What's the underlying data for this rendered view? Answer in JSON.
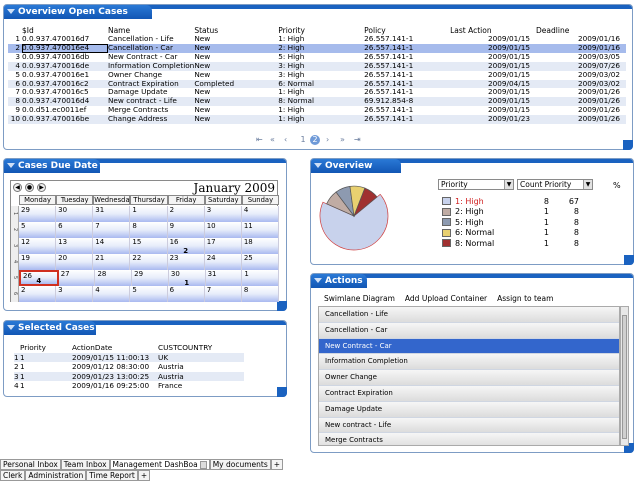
{
  "overview_cases": {
    "title": "Overview Open Cases",
    "columns": [
      "$Id",
      "Name",
      "Status",
      "Priority",
      "Policy",
      "Last Action",
      "Deadline"
    ],
    "rows": [
      {
        "n": "1",
        "id": "0.0.937.470016d7",
        "name": "Cancellation - Life",
        "status": "New",
        "priority": "1: High",
        "policy": "26.557.141-1",
        "last": "2009/01/15",
        "deadline": "2009/01/16"
      },
      {
        "n": "2",
        "id": "0.0.937.470016e4",
        "name": "Cancellation - Car",
        "status": "New",
        "priority": "2: High",
        "policy": "26.557.141-1",
        "last": "2009/01/15",
        "deadline": "2009/01/16"
      },
      {
        "n": "3",
        "id": "0.0.937.470016db",
        "name": "New Contract - Car",
        "status": "New",
        "priority": "5: High",
        "policy": "26.557.141-1",
        "last": "2009/01/15",
        "deadline": "2009/03/05"
      },
      {
        "n": "4",
        "id": "0.0.937.470016de",
        "name": "Information Completion",
        "status": "New",
        "priority": "3: High",
        "policy": "26.557.141-1",
        "last": "2009/01/15",
        "deadline": "2009/07/26"
      },
      {
        "n": "5",
        "id": "0.0.937.470016e1",
        "name": "Owner Change",
        "status": "New",
        "priority": "3: High",
        "policy": "26.557.141-1",
        "last": "2009/01/15",
        "deadline": "2009/03/02"
      },
      {
        "n": "6",
        "id": "0.0.937.470016c2",
        "name": "Contract Expiration",
        "status": "Completed",
        "priority": "6: Normal",
        "policy": "26.557.141-1",
        "last": "2009/04/15",
        "deadline": "2009/03/02"
      },
      {
        "n": "7",
        "id": "0.0.937.470016c5",
        "name": "Damage Update",
        "status": "New",
        "priority": "1: High",
        "policy": "26.557.141-1",
        "last": "2009/01/15",
        "deadline": "2009/01/26"
      },
      {
        "n": "8",
        "id": "0.0.937.470016d4",
        "name": "New contract - Life",
        "status": "New",
        "priority": "8: Normal",
        "policy": "69.912.854-8",
        "last": "2009/01/15",
        "deadline": "2009/01/26"
      },
      {
        "n": "9",
        "id": "0.0.d51.ec0011ef",
        "name": "Merge Contracts",
        "status": "New",
        "priority": "1: High",
        "policy": "26.557.141-1",
        "last": "2009/01/15",
        "deadline": "2009/01/26"
      },
      {
        "n": "10",
        "id": "0.0.937.470016be",
        "name": "Change Address",
        "status": "New",
        "priority": "1: High",
        "policy": "26.557.141-1",
        "last": "2009/01/23",
        "deadline": "2009/01/26"
      }
    ],
    "pager": {
      "first": "⇤",
      "prev_many": "«",
      "prev": "‹",
      "pages": [
        "1",
        "2"
      ],
      "current_page": "2",
      "next": "›",
      "next_many": "»",
      "last": "⇥"
    }
  },
  "cases_due": {
    "title": "Cases Due Date",
    "month": "January 2009",
    "days": [
      "Monday",
      "Tuesday",
      "Wednesday",
      "Thursday",
      "Friday",
      "Saturday",
      "Sunday"
    ],
    "weeks": [
      {
        "wk": "1",
        "d": [
          "29",
          "30",
          "31",
          "1",
          "2",
          "3",
          "4"
        ],
        "count": "",
        "count_col": -1
      },
      {
        "wk": "2",
        "d": [
          "5",
          "6",
          "7",
          "8",
          "9",
          "10",
          "11"
        ],
        "count": "",
        "count_col": -1
      },
      {
        "wk": "3",
        "d": [
          "12",
          "13",
          "14",
          "15",
          "16",
          "17",
          "18"
        ],
        "count": "2",
        "count_col": 4
      },
      {
        "wk": "4",
        "d": [
          "19",
          "20",
          "21",
          "22",
          "23",
          "24",
          "25"
        ],
        "count": "",
        "count_col": -1
      },
      {
        "wk": "5",
        "d": [
          "26",
          "27",
          "28",
          "29",
          "30",
          "31",
          "1"
        ],
        "count": "4",
        "count_col": 0
      },
      {
        "wk": "6",
        "d": [
          "2",
          "3",
          "4",
          "5",
          "6",
          "7",
          "8"
        ],
        "count": "",
        "count_col": -1
      }
    ],
    "extra_count": "1"
  },
  "selected_cases": {
    "title": "Selected Cases",
    "columns": [
      "Priority",
      "ActionDate",
      "CUSTCOUNTRY"
    ],
    "rows": [
      {
        "n": "1",
        "p": "1",
        "date": "2009/01/15 11:00:13",
        "country": "UK"
      },
      {
        "n": "2",
        "p": "1",
        "date": "2009/01/12 08:30:00",
        "country": "Austria"
      },
      {
        "n": "3",
        "p": "1",
        "date": "2009/01/23 13:00:25",
        "country": "Austria"
      },
      {
        "n": "4",
        "p": "1",
        "date": "2009/01/16 09:25:00",
        "country": "France"
      }
    ]
  },
  "overview_open": {
    "title": "Overview Open",
    "dropdown1": "Priority",
    "dropdown2": "Count Priority",
    "pct_header": "%",
    "legend": [
      {
        "label": "1: High",
        "count": "8",
        "pct": "67",
        "color": "#c8d2ec",
        "red": true
      },
      {
        "label": "2: High",
        "count": "1",
        "pct": "8",
        "color": "#c0aca4",
        "red": false
      },
      {
        "label": "5: High",
        "count": "1",
        "pct": "8",
        "color": "#8d9ab0",
        "red": false
      },
      {
        "label": "6: Normal",
        "count": "1",
        "pct": "8",
        "color": "#e8d070",
        "red": false
      },
      {
        "label": "8: Normal",
        "count": "1",
        "pct": "8",
        "color": "#a03030",
        "red": false
      }
    ]
  },
  "actions": {
    "title": "Actions",
    "toolbar": [
      "Swimlane Diagram",
      "Add Upload Container",
      "Assign to team"
    ],
    "items": [
      "Cancellation - Life",
      "Cancellation - Car",
      "New Contract - Car",
      "Information Completion",
      "Owner Change",
      "Contract Expiration",
      "Damage Update",
      "New contract - Life",
      "Merge Contracts"
    ],
    "selected_index": 2
  },
  "tabs_top": [
    "Personal Inbox",
    "Team Inbox",
    "Management DashBoa",
    "My documents",
    "+"
  ],
  "tabs_bottom": [
    "Clerk",
    "Administration",
    "Time Report",
    "+"
  ]
}
